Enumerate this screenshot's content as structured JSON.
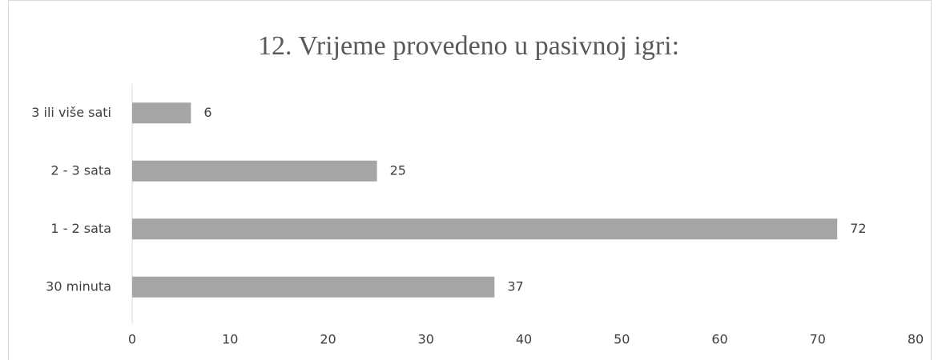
{
  "chart_data": {
    "type": "bar",
    "orientation": "horizontal",
    "title": "12. Vrijeme provedeno u pasivnoj igri:",
    "categories": [
      "30 minuta",
      "1 - 2 sata",
      "2 - 3 sata",
      "3 ili više sati"
    ],
    "values": [
      37,
      72,
      25,
      6
    ],
    "color": "#a5a5a5",
    "xlim": [
      0,
      80
    ],
    "xticks": [
      0,
      10,
      20,
      30,
      40,
      50,
      60,
      70,
      80
    ],
    "grid": false
  }
}
